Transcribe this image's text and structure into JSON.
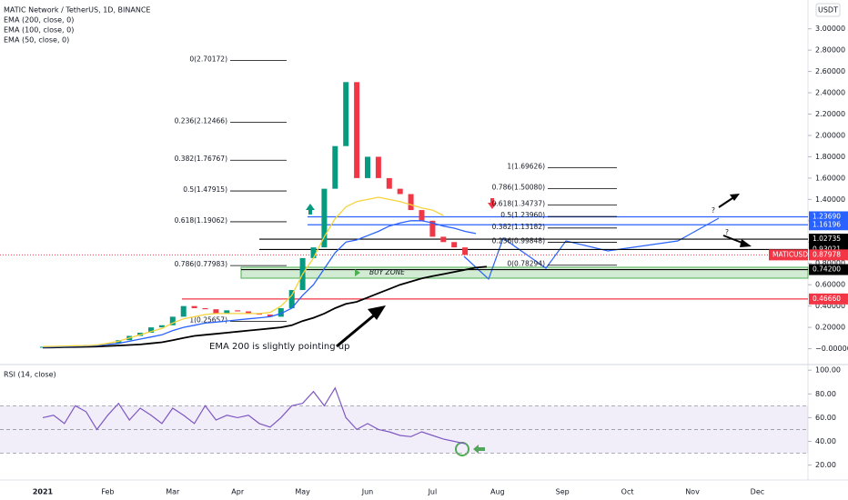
{
  "chart_data": [
    {
      "type": "line",
      "title": "MATIC Network / TetherUS, 1D, BINANCE",
      "unit": "USDT",
      "categories": [
        "2021",
        null,
        null,
        null,
        null,
        null,
        "Feb",
        null,
        null,
        null,
        null,
        null,
        "Mar",
        null,
        null,
        null,
        null,
        null,
        "Apr",
        null,
        null,
        null,
        null,
        null,
        "May",
        null,
        null,
        null,
        null,
        null,
        "Jun",
        null,
        null,
        null,
        null,
        null,
        "Jul",
        null,
        null,
        null,
        null,
        null,
        "Aug",
        null,
        null,
        null,
        null,
        null,
        "Sep",
        null,
        null,
        null,
        null,
        null,
        "Oct",
        null,
        null,
        null,
        null,
        null,
        "Nov",
        null,
        null,
        null,
        null,
        null,
        "Dec",
        null,
        null,
        null,
        null
      ],
      "values": [
        0.018,
        0.02,
        0.025,
        0.03,
        0.035,
        0.04,
        0.05,
        0.08,
        0.12,
        0.15,
        0.2,
        0.22,
        0.3,
        0.4,
        0.38,
        0.37,
        0.33,
        0.36,
        0.35,
        0.33,
        0.32,
        0.3,
        0.38,
        0.55,
        0.85,
        0.95,
        1.5,
        1.9,
        2.5,
        1.6,
        1.8,
        1.6,
        1.5,
        1.45,
        1.3,
        1.2,
        1.05,
        1.0,
        0.95,
        0.88,
        null,
        null,
        null,
        null,
        null,
        null,
        null,
        null,
        null,
        null,
        null,
        null,
        null,
        null,
        null,
        null,
        null,
        null,
        null,
        null,
        null,
        null,
        null,
        null,
        null,
        null,
        null,
        null,
        null,
        null,
        null
      ],
      "up_color": "#089981",
      "down_color": "#f23645",
      "series": [
        {
          "name": "EMA (200, close, 0)",
          "color": "#000000",
          "values": [
            0.01,
            0.012,
            0.014,
            0.016,
            0.018,
            0.02,
            0.025,
            0.03,
            0.035,
            0.04,
            0.05,
            0.06,
            0.08,
            0.1,
            0.12,
            0.13,
            0.14,
            0.15,
            0.16,
            0.17,
            0.18,
            0.19,
            0.2,
            0.22,
            0.26,
            0.29,
            0.33,
            0.38,
            0.42,
            0.44,
            0.48,
            0.52,
            0.56,
            0.6,
            0.63,
            0.66,
            0.68,
            0.7,
            0.72,
            0.74,
            0.76,
            0.77,
            null,
            null,
            null,
            null,
            null,
            null,
            null,
            null,
            null,
            null,
            null,
            null,
            null,
            null,
            null,
            null,
            null,
            null,
            null,
            null,
            null,
            null,
            null,
            null,
            null,
            null,
            null,
            null,
            null
          ]
        },
        {
          "name": "EMA (100, close, 0)",
          "color": "#2962ff",
          "values": [
            0.015,
            0.017,
            0.02,
            0.023,
            0.026,
            0.03,
            0.04,
            0.05,
            0.07,
            0.09,
            0.11,
            0.13,
            0.17,
            0.2,
            0.22,
            0.24,
            0.25,
            0.26,
            0.27,
            0.28,
            0.29,
            0.3,
            0.33,
            0.38,
            0.5,
            0.6,
            0.75,
            0.9,
            1.0,
            1.02,
            1.06,
            1.1,
            1.15,
            1.18,
            1.2,
            1.2,
            1.18,
            1.15,
            1.13,
            1.1,
            1.08,
            null,
            null,
            null,
            null,
            null,
            null,
            null,
            null,
            null,
            null,
            null,
            null,
            null,
            null,
            null,
            null,
            null,
            null,
            null,
            null,
            null,
            null,
            null,
            null,
            null,
            null,
            null,
            null,
            null,
            null
          ]
        },
        {
          "name": "EMA (50, close, 0)",
          "color": "#f5d33b",
          "values": [
            0.02,
            0.022,
            0.025,
            0.028,
            0.03,
            0.035,
            0.05,
            0.07,
            0.1,
            0.13,
            0.16,
            0.19,
            0.24,
            0.28,
            0.3,
            0.32,
            0.33,
            0.33,
            0.33,
            0.33,
            0.33,
            0.34,
            0.4,
            0.5,
            0.7,
            0.85,
            1.05,
            1.22,
            1.33,
            1.38,
            1.4,
            1.42,
            1.4,
            1.38,
            1.35,
            1.32,
            1.3,
            1.25,
            null,
            null,
            null,
            null,
            null,
            null,
            null,
            null,
            null,
            null,
            null,
            null,
            null,
            null,
            null,
            null,
            null,
            null,
            null,
            null,
            null,
            null,
            null,
            null,
            null,
            null,
            null,
            null,
            null,
            null,
            null,
            null,
            null
          ]
        }
      ],
      "ylim": [
        -0.14,
        3.27
      ],
      "yticks": [
        {
          "value": 0,
          "label": "−0.00000"
        },
        {
          "value": 0.2,
          "label": "0.20000"
        },
        {
          "value": 0.4,
          "label": "0.40000"
        },
        {
          "value": 0.6,
          "label": "0.60000"
        },
        {
          "value": 0.8,
          "label": "0.80000"
        },
        {
          "value": 1.0,
          "label": "1.00000"
        },
        {
          "value": 1.2,
          "label": "1.20000"
        },
        {
          "value": 1.4,
          "label": "1.40000"
        },
        {
          "value": 1.6,
          "label": "1.60000"
        },
        {
          "value": 1.8,
          "label": "1.80000"
        },
        {
          "value": 2.0,
          "label": "2.00000"
        },
        {
          "value": 2.2,
          "label": "2.20000"
        },
        {
          "value": 2.4,
          "label": "2.40000"
        },
        {
          "value": 2.6,
          "label": "2.60000"
        },
        {
          "value": 2.8,
          "label": "2.80000"
        },
        {
          "value": 3.0,
          "label": "3.00000"
        }
      ],
      "fib_sets": [
        [
          {
            "value": 2.70172,
            "label": "0(2.70172)"
          },
          {
            "value": 2.12466,
            "label": "0.236(2.12466)"
          },
          {
            "value": 1.76767,
            "label": "0.382(1.76767)"
          },
          {
            "value": 1.47915,
            "label": "0.5(1.47915)"
          },
          {
            "value": 1.19062,
            "label": "0.618(1.19062)"
          },
          {
            "value": 0.77983,
            "label": "0.786(0.77983)"
          },
          {
            "value": 0.25657,
            "label": "1(0.25657)"
          }
        ],
        [
          {
            "value": 1.69626,
            "label": "1(1.69626)"
          },
          {
            "value": 1.5008,
            "label": "0.786(1.50080)"
          },
          {
            "value": 1.34737,
            "label": "0.618(1.34737)"
          },
          {
            "value": 1.2396,
            "label": "0.5(1.23960)"
          },
          {
            "value": 1.13182,
            "label": "0.382(1.13182)"
          },
          {
            "value": 0.99848,
            "label": "0.236(0.99848)"
          },
          {
            "value": 0.78294,
            "label": "0(0.78294)"
          }
        ]
      ],
      "levels": [
        {
          "value": 1.2369,
          "label": "1.23690",
          "color": "#2962ff"
        },
        {
          "value": 1.16196,
          "label": "1.16196",
          "color": "#2962ff"
        },
        {
          "value": 1.02735,
          "label": "1.02735",
          "color": "#000000"
        },
        {
          "value": 0.93021,
          "label": "0.93021",
          "color": "#000000"
        },
        {
          "value": 0.742,
          "label": "0.74200",
          "color": "#000000"
        },
        {
          "value": 0.4666,
          "label": "0.46660",
          "color": "#f23645"
        }
      ],
      "last_price": {
        "value": 0.87978,
        "label": "0.87978",
        "name": "MATICUSDT",
        "color": "#f23645"
      },
      "annotations": {
        "ema_note": "EMA 200 is slightly pointing up",
        "buy_zone": "BUY ZONE",
        "question_up": "?",
        "question_down": "?"
      }
    },
    {
      "type": "rsi",
      "title": "RSI (14, close)",
      "color": "#7e57c2",
      "values": [
        60,
        62,
        55,
        70,
        65,
        50,
        62,
        72,
        58,
        68,
        62,
        55,
        68,
        62,
        55,
        70,
        58,
        62,
        60,
        62,
        55,
        52,
        60,
        70,
        72,
        82,
        70,
        85,
        60,
        50,
        55,
        50,
        48,
        45,
        44,
        48,
        45,
        42,
        40,
        38,
        null,
        null,
        null,
        null,
        null,
        null,
        null,
        null,
        null,
        null,
        null,
        null,
        null,
        null,
        null,
        null,
        null,
        null,
        null,
        null,
        null,
        null,
        null,
        null,
        null,
        null,
        null,
        null,
        null,
        null,
        null
      ],
      "bands": [
        70,
        50,
        30
      ],
      "ylim": [
        12,
        104
      ],
      "yticks": [
        {
          "value": 100,
          "label": "100.00"
        },
        {
          "value": 80,
          "label": "80.00"
        },
        {
          "value": 60,
          "label": "60.00"
        },
        {
          "value": 40,
          "label": "40.00"
        },
        {
          "value": 20,
          "label": "20.00"
        }
      ]
    }
  ]
}
